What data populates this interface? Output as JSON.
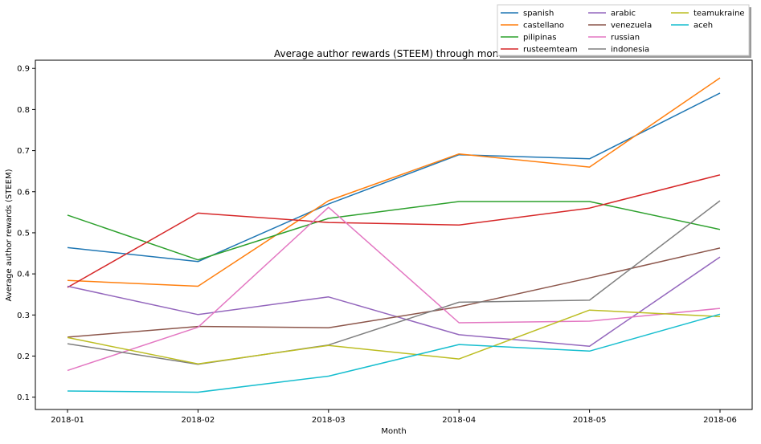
{
  "chart_data": {
    "type": "line",
    "title": "Average author rewards (STEEM) through months",
    "xlabel": "Month",
    "ylabel": "Average author rewards (STEEM)",
    "categories": [
      "2018-01",
      "2018-02",
      "2018-03",
      "2018-04",
      "2018-05",
      "2018-06"
    ],
    "ylim": [
      0.07,
      0.92
    ],
    "yticks": [
      0.1,
      0.2,
      0.3,
      0.4,
      0.5,
      0.6,
      0.7,
      0.8,
      0.9
    ],
    "ytick_labels": [
      "0.1",
      "0.2",
      "0.3",
      "0.4",
      "0.5",
      "0.6",
      "0.7",
      "0.8",
      "0.9"
    ],
    "grid": false,
    "legend_placement": "top-right, outside plot, 3 columns",
    "series": [
      {
        "name": "spanish",
        "color": "#1f77b4",
        "values": [
          0.464,
          0.43,
          0.57,
          0.69,
          0.68,
          0.84
        ]
      },
      {
        "name": "castellano",
        "color": "#ff7f0e",
        "values": [
          0.384,
          0.37,
          0.578,
          0.692,
          0.66,
          0.877
        ]
      },
      {
        "name": "pilipinas",
        "color": "#2ca02c",
        "values": [
          0.543,
          0.434,
          0.535,
          0.576,
          0.576,
          0.508
        ]
      },
      {
        "name": "rusteemteam",
        "color": "#d62728",
        "values": [
          0.367,
          0.548,
          0.525,
          0.519,
          0.56,
          0.641
        ]
      },
      {
        "name": "arabic",
        "color": "#9467bd",
        "values": [
          0.37,
          0.301,
          0.344,
          0.252,
          0.224,
          0.441
        ]
      },
      {
        "name": "venezuela",
        "color": "#8c564b",
        "values": [
          0.246,
          0.272,
          0.269,
          0.32,
          0.39,
          0.463
        ]
      },
      {
        "name": "russian",
        "color": "#e377c2",
        "values": [
          0.165,
          0.27,
          0.562,
          0.281,
          0.285,
          0.316
        ]
      },
      {
        "name": "indonesia",
        "color": "#7f7f7f",
        "values": [
          0.23,
          0.18,
          0.227,
          0.331,
          0.336,
          0.578
        ]
      },
      {
        "name": "teamukraine",
        "color": "#bcbd22",
        "values": [
          0.245,
          0.181,
          0.226,
          0.193,
          0.312,
          0.296
        ]
      },
      {
        "name": "aceh",
        "color": "#17becf",
        "values": [
          0.115,
          0.112,
          0.151,
          0.228,
          0.212,
          0.302
        ]
      }
    ]
  }
}
